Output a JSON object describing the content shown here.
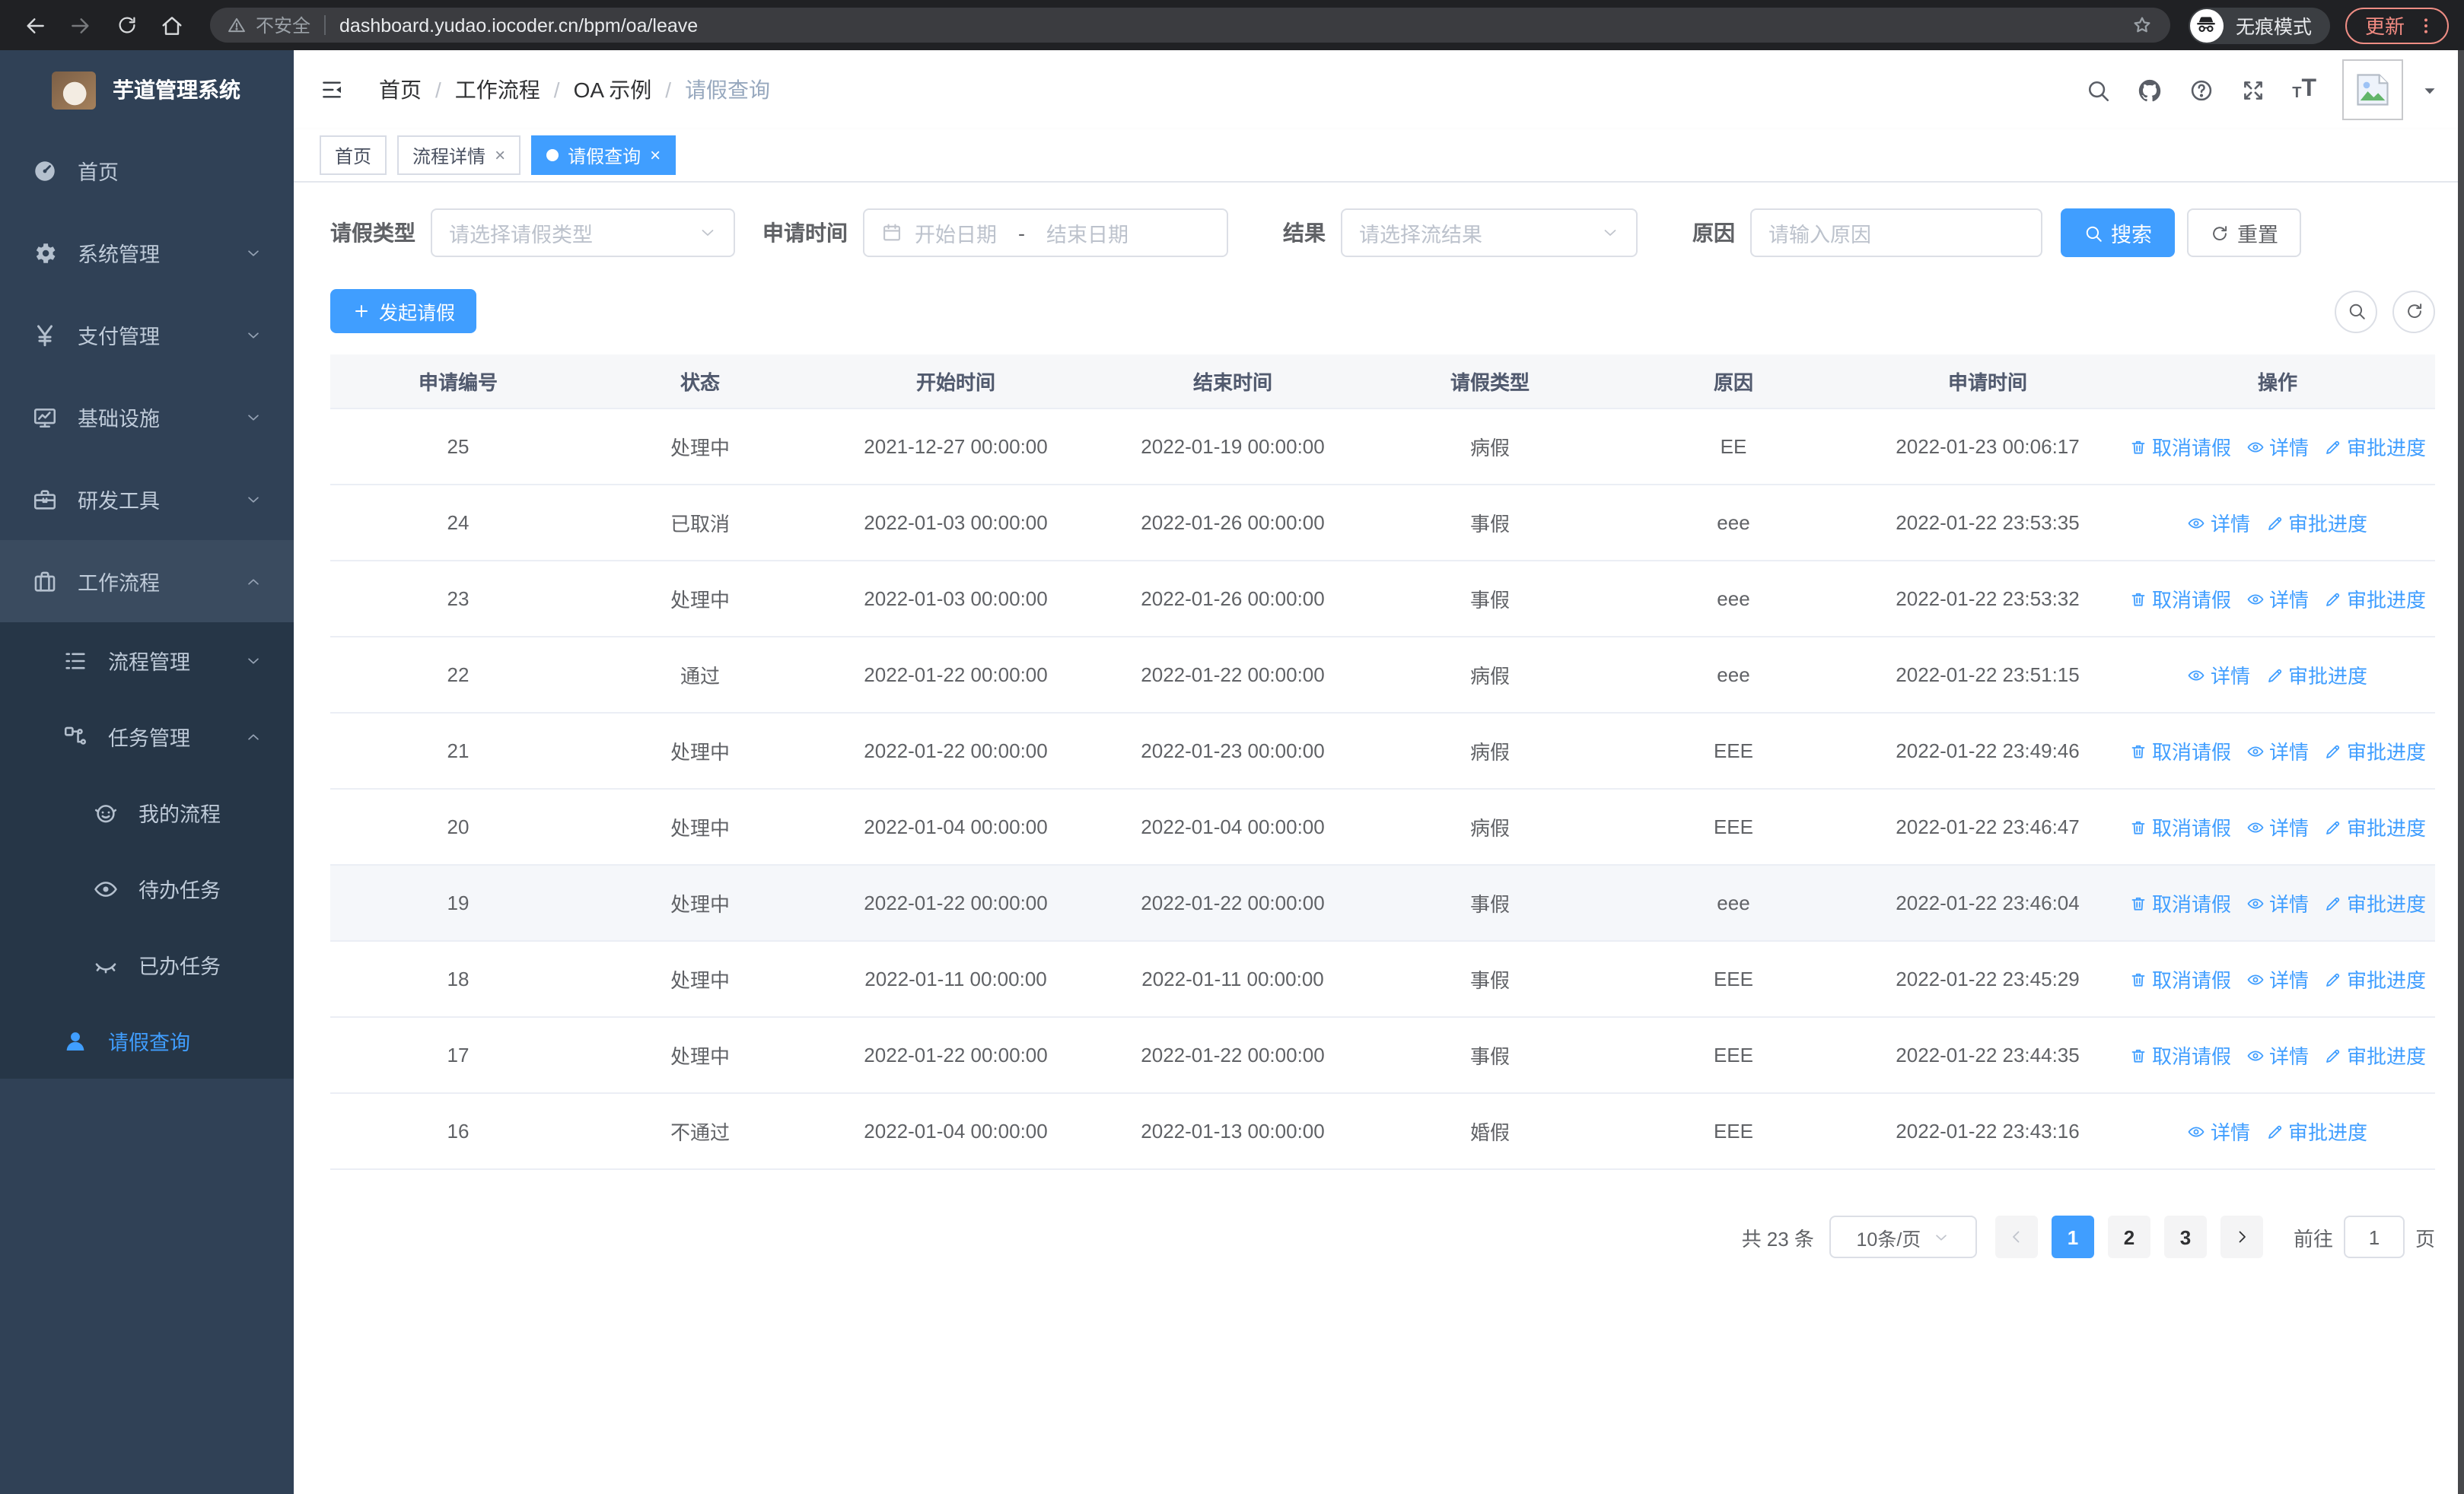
{
  "browser": {
    "security_warning": "不安全",
    "url": "dashboard.yudao.iocoder.cn/bpm/oa/leave",
    "incognito_label": "无痕模式",
    "update_label": "更新"
  },
  "sidebar": {
    "app_title": "芋道管理系统",
    "menu": [
      {
        "name": "home",
        "label": "首页",
        "icon": "dashboard-icon",
        "level": 1
      },
      {
        "name": "system",
        "label": "系统管理",
        "icon": "gear-icon",
        "level": 1,
        "chevron": "down"
      },
      {
        "name": "payment",
        "label": "支付管理",
        "icon": "yen-icon",
        "level": 1,
        "chevron": "down"
      },
      {
        "name": "infrastructure",
        "label": "基础设施",
        "icon": "monitor-icon",
        "level": 1,
        "chevron": "down"
      },
      {
        "name": "devtools",
        "label": "研发工具",
        "icon": "toolbox-icon",
        "level": 1,
        "chevron": "down"
      },
      {
        "name": "workflow",
        "label": "工作流程",
        "icon": "briefcase-icon",
        "level": 1,
        "chevron": "up",
        "highlighted": true
      },
      {
        "name": "process-mgmt",
        "label": "流程管理",
        "icon": "list-icon",
        "level": 2,
        "chevron": "down",
        "sub": true
      },
      {
        "name": "task-mgmt",
        "label": "任务管理",
        "icon": "flow-icon",
        "level": 2,
        "chevron": "up",
        "sub": true
      },
      {
        "name": "my-process",
        "label": "我的流程",
        "icon": "robot-icon",
        "level": 3,
        "sub": true
      },
      {
        "name": "todo-tasks",
        "label": "待办任务",
        "icon": "eye-open-icon",
        "level": 3,
        "sub": true
      },
      {
        "name": "done-tasks",
        "label": "已办任务",
        "icon": "eye-closed-icon",
        "level": 3,
        "sub": true
      },
      {
        "name": "leave-query",
        "label": "请假查询",
        "icon": "user-icon",
        "level": 2,
        "active": true,
        "sub": true
      }
    ]
  },
  "header": {
    "breadcrumb": [
      "首页",
      "工作流程",
      "OA 示例",
      "请假查询"
    ]
  },
  "tabs": [
    {
      "name": "home",
      "label": "首页"
    },
    {
      "name": "process-detail",
      "label": "流程详情",
      "closable": true
    },
    {
      "name": "leave-query",
      "label": "请假查询",
      "closable": true,
      "active": true
    }
  ],
  "filters": {
    "leave_type_label": "请假类型",
    "leave_type_placeholder": "请选择请假类型",
    "apply_time_label": "申请时间",
    "start_placeholder": "开始日期",
    "range_separator": "-",
    "end_placeholder": "结束日期",
    "result_label": "结果",
    "result_placeholder": "请选择流结果",
    "reason_label": "原因",
    "reason_placeholder": "请输入原因",
    "search_label": "搜索",
    "reset_label": "重置"
  },
  "toolbar": {
    "create_label": "发起请假"
  },
  "table": {
    "columns": [
      "申请编号",
      "状态",
      "开始时间",
      "结束时间",
      "请假类型",
      "原因",
      "申请时间",
      "操作"
    ],
    "action_labels": {
      "cancel": "取消请假",
      "detail": "详情",
      "progress": "审批进度"
    },
    "rows": [
      {
        "id": "25",
        "status": "处理中",
        "start": "2021-12-27 00:00:00",
        "end": "2022-01-19 00:00:00",
        "type": "病假",
        "reason": "EE",
        "applied": "2022-01-23 00:06:17",
        "actions": [
          "cancel",
          "detail",
          "progress"
        ]
      },
      {
        "id": "24",
        "status": "已取消",
        "start": "2022-01-03 00:00:00",
        "end": "2022-01-26 00:00:00",
        "type": "事假",
        "reason": "eee",
        "applied": "2022-01-22 23:53:35",
        "actions": [
          "detail",
          "progress"
        ]
      },
      {
        "id": "23",
        "status": "处理中",
        "start": "2022-01-03 00:00:00",
        "end": "2022-01-26 00:00:00",
        "type": "事假",
        "reason": "eee",
        "applied": "2022-01-22 23:53:32",
        "actions": [
          "cancel",
          "detail",
          "progress"
        ]
      },
      {
        "id": "22",
        "status": "通过",
        "start": "2022-01-22 00:00:00",
        "end": "2022-01-22 00:00:00",
        "type": "病假",
        "reason": "eee",
        "applied": "2022-01-22 23:51:15",
        "actions": [
          "detail",
          "progress"
        ]
      },
      {
        "id": "21",
        "status": "处理中",
        "start": "2022-01-22 00:00:00",
        "end": "2022-01-23 00:00:00",
        "type": "病假",
        "reason": "EEE",
        "applied": "2022-01-22 23:49:46",
        "actions": [
          "cancel",
          "detail",
          "progress"
        ]
      },
      {
        "id": "20",
        "status": "处理中",
        "start": "2022-01-04 00:00:00",
        "end": "2022-01-04 00:00:00",
        "type": "病假",
        "reason": "EEE",
        "applied": "2022-01-22 23:46:47",
        "actions": [
          "cancel",
          "detail",
          "progress"
        ]
      },
      {
        "id": "19",
        "status": "处理中",
        "start": "2022-01-22 00:00:00",
        "end": "2022-01-22 00:00:00",
        "type": "事假",
        "reason": "eee",
        "applied": "2022-01-22 23:46:04",
        "actions": [
          "cancel",
          "detail",
          "progress"
        ],
        "highlighted": true
      },
      {
        "id": "18",
        "status": "处理中",
        "start": "2022-01-11 00:00:00",
        "end": "2022-01-11 00:00:00",
        "type": "事假",
        "reason": "EEE",
        "applied": "2022-01-22 23:45:29",
        "actions": [
          "cancel",
          "detail",
          "progress"
        ]
      },
      {
        "id": "17",
        "status": "处理中",
        "start": "2022-01-22 00:00:00",
        "end": "2022-01-22 00:00:00",
        "type": "事假",
        "reason": "EEE",
        "applied": "2022-01-22 23:44:35",
        "actions": [
          "cancel",
          "detail",
          "progress"
        ]
      },
      {
        "id": "16",
        "status": "不通过",
        "start": "2022-01-04 00:00:00",
        "end": "2022-01-13 00:00:00",
        "type": "婚假",
        "reason": "EEE",
        "applied": "2022-01-22 23:43:16",
        "actions": [
          "detail",
          "progress"
        ]
      }
    ]
  },
  "pagination": {
    "total_label": "共 23 条",
    "page_size": "10条/页",
    "pages": [
      "1",
      "2",
      "3"
    ],
    "active_page": "1",
    "goto_label": "前往",
    "goto_value": "1",
    "goto_suffix": "页"
  },
  "colors": {
    "accent": "#409eff",
    "sidebar_bg": "#304156",
    "submenu_bg": "#263647",
    "chrome_bg": "#202124",
    "update_red": "#f28b82"
  }
}
